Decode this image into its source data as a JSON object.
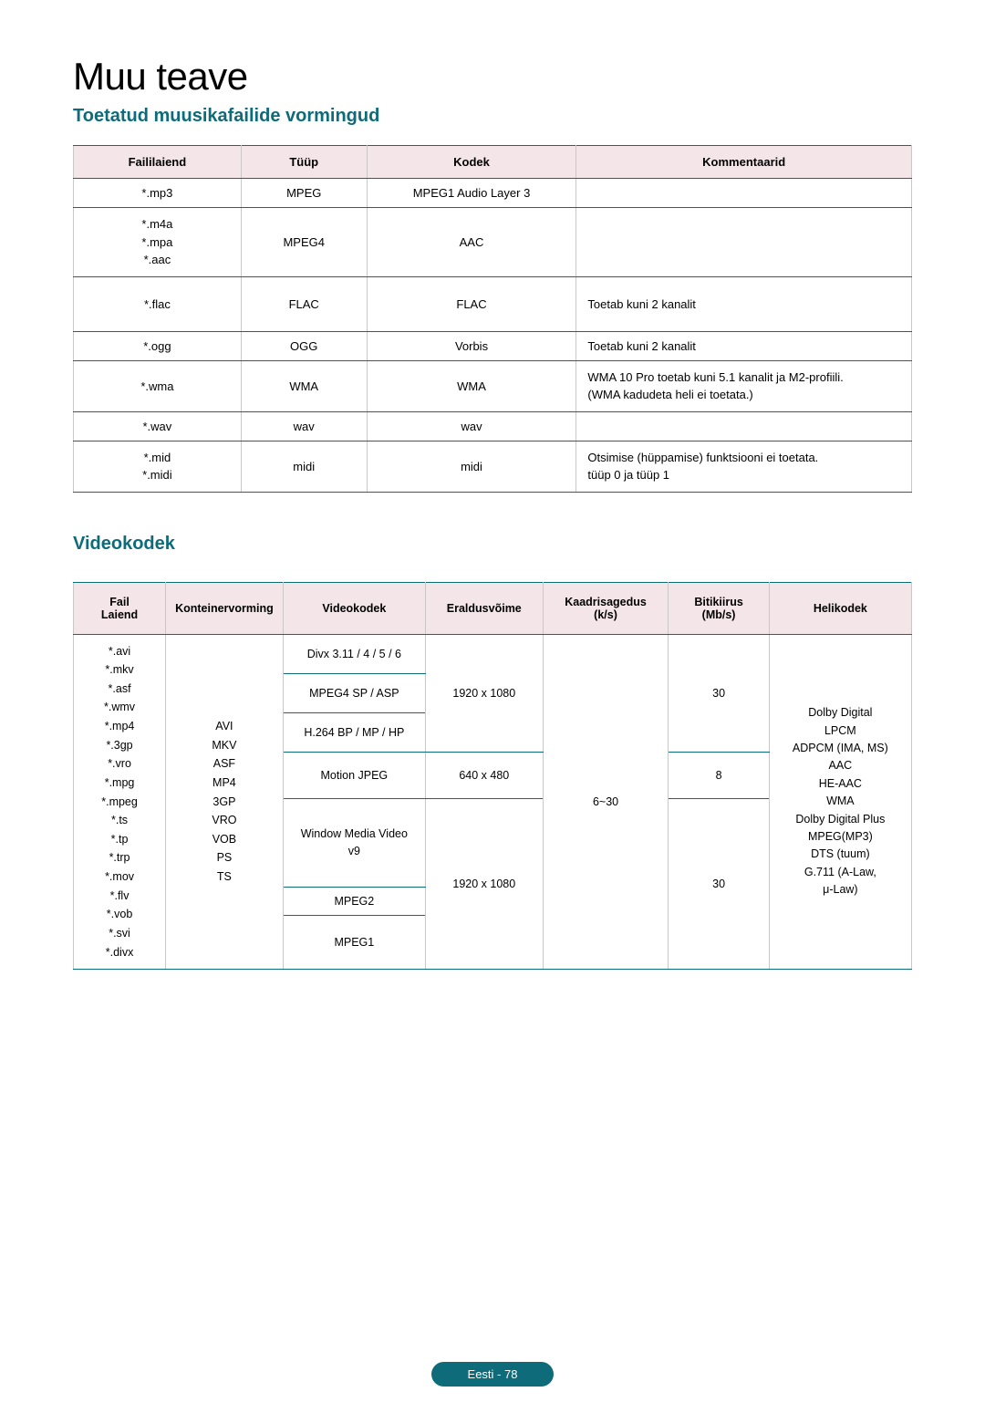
{
  "titles": {
    "main": "Muu teave",
    "music": "Toetatud muusikafailide vormingud",
    "video": "Videokodek"
  },
  "music_table": {
    "headers": [
      "Faililaiend",
      "Tüüp",
      "Kodek",
      "Kommentaarid"
    ],
    "rows": [
      {
        "ext": "*.mp3",
        "type": "MPEG",
        "codec": "MPEG1 Audio Layer 3",
        "comment": ""
      },
      {
        "ext": "*.m4a\n*.mpa\n*.aac",
        "type": "MPEG4",
        "codec": "AAC",
        "comment": ""
      },
      {
        "ext": "*.flac",
        "type": "FLAC",
        "codec": "FLAC",
        "comment": "Toetab kuni 2 kanalit"
      },
      {
        "ext": "*.ogg",
        "type": "OGG",
        "codec": "Vorbis",
        "comment": "Toetab kuni 2 kanalit"
      },
      {
        "ext": "*.wma",
        "type": "WMA",
        "codec": "WMA",
        "comment": "WMA 10 Pro toetab kuni 5.1 kanalit ja M2-profiili.\n(WMA kadudeta heli ei toetata.)"
      },
      {
        "ext": "*.wav",
        "type": "wav",
        "codec": "wav",
        "comment": ""
      },
      {
        "ext": "*.mid\n*.midi",
        "type": "midi",
        "codec": "midi",
        "comment": "Otsimise (hüppamise) funktsiooni ei toetata.\ntüüp 0 ja tüüp 1"
      }
    ]
  },
  "video_table": {
    "headers": [
      "Fail\nLaiend",
      "Konteinervorming",
      "Videokodek",
      "Eraldusvõime",
      "Kaadrisagedus\n(k/s)",
      "Bitikiirus\n(Mb/s)",
      "Helikodek"
    ],
    "file_ext": "*.avi\n*.mkv\n*.asf\n*.wmv\n*.mp4\n*.3gp\n*.vro\n*.mpg\n*.mpeg\n*.ts\n*.tp\n*.trp\n*.mov\n*.flv\n*.vob\n*.svi\n*.divx",
    "container": "AVI\nMKV\nASF\nMP4\n3GP\nVRO\nVOB\nPS\nTS",
    "codecs": {
      "r1": "Divx 3.11 / 4 / 5 / 6",
      "r2": "MPEG4 SP / ASP",
      "r3": "H.264 BP / MP / HP",
      "r4": "Motion JPEG",
      "r5": "Window Media Video\nv9",
      "r6": "MPEG2",
      "r7": "MPEG1"
    },
    "res": {
      "a": "1920 x 1080",
      "b": "640 x 480",
      "c": "1920 x 1080"
    },
    "fps": "6~30",
    "bitrate": {
      "a": "30",
      "b": "8",
      "c": "30"
    },
    "audio": "Dolby Digital\nLPCM\nADPCM (IMA, MS)\nAAC\nHE-AAC\nWMA\nDolby Digital Plus\nMPEG(MP3)\nDTS (tuum)\nG.711 (A-Law,\nμ-Law)"
  },
  "footer": "Eesti - 78"
}
